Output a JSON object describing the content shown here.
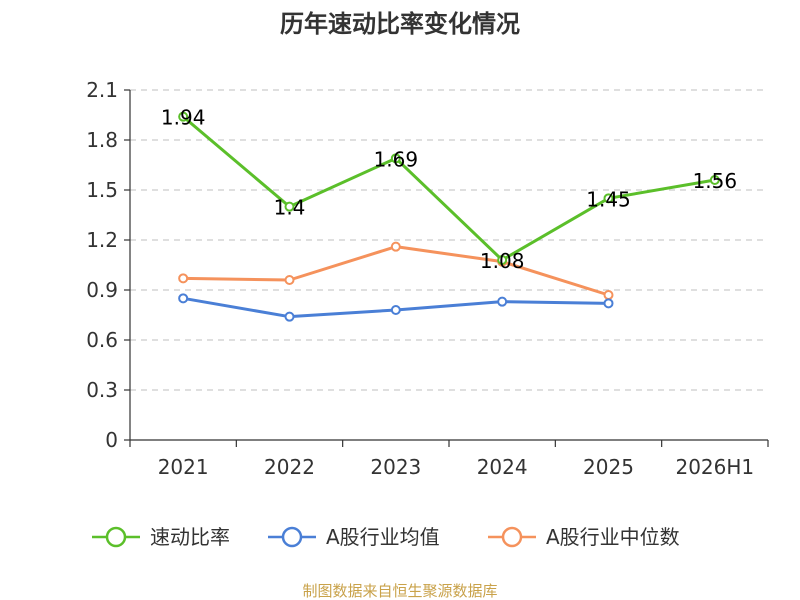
{
  "chart_data": {
    "type": "line",
    "title": "历年速动比率变化情况",
    "categories": [
      "2021",
      "2022",
      "2023",
      "2024",
      "2025",
      "2026H1"
    ],
    "ylim": [
      0,
      2.1
    ],
    "yticks": [
      "0",
      "0.3",
      "0.6",
      "0.9",
      "1.2",
      "1.5",
      "1.8",
      "2.1"
    ],
    "grid": true,
    "legend_position": "bottom",
    "series": [
      {
        "name": "速动比率",
        "color": "#5bbf2a",
        "values": [
          1.94,
          1.4,
          1.69,
          1.08,
          1.45,
          1.56
        ],
        "labels": [
          "1.94",
          "1.4",
          "1.69",
          "1.08",
          "1.45",
          "1.56"
        ]
      },
      {
        "name": "A股行业均值",
        "color": "#4a7fd6",
        "values": [
          0.85,
          0.74,
          0.78,
          0.83,
          0.82,
          null
        ]
      },
      {
        "name": "A股行业中位数",
        "color": "#f5925c",
        "values": [
          0.97,
          0.96,
          1.16,
          1.07,
          0.87,
          null
        ]
      }
    ]
  },
  "source": "制图数据来自恒生聚源数据库"
}
